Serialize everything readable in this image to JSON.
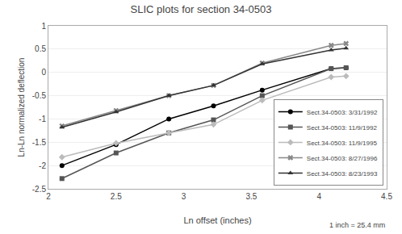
{
  "chart_data": {
    "type": "line",
    "title": "SLIC plots for section 34-0503",
    "x_label": "Ln offset (inches)",
    "y_label": "Ln-Ln normalized deflection",
    "annotations": [
      "1 inch = 25.4 mm"
    ],
    "xlim": [
      2.0,
      4.5
    ],
    "ylim": [
      -2.5,
      1.0
    ],
    "xticks": [
      2.0,
      2.5,
      3.0,
      3.5,
      4.0,
      4.5
    ],
    "yticks": [
      -2.5,
      -2.0,
      -1.5,
      -1.0,
      -0.5,
      0.0,
      0.5,
      1.0
    ],
    "grid": true,
    "legend": "lower right",
    "series": [
      {
        "name": "Sect.34-0503: 3/31/1992",
        "color": "#000000",
        "marker": "circle",
        "line_style": "solid",
        "x": [
          2.1,
          2.5,
          2.89,
          3.22,
          3.58,
          4.09,
          4.2
        ],
        "values": [
          -2.0,
          -1.55,
          -1.0,
          -0.72,
          -0.38,
          0.08,
          0.1
        ]
      },
      {
        "name": "Sect.34-0503: 11/9/1992",
        "color": "#555555",
        "marker": "square",
        "line_style": "solid",
        "x": [
          2.1,
          2.5,
          2.89,
          3.22,
          3.58,
          4.09,
          4.2
        ],
        "values": [
          -2.28,
          -1.73,
          -1.3,
          -1.02,
          -0.5,
          0.08,
          0.1
        ]
      },
      {
        "name": "Sect.34-0503: 11/9/1995",
        "color": "#bbbbbb",
        "marker": "diamond",
        "line_style": "solid",
        "x": [
          2.1,
          2.5,
          2.89,
          3.22,
          3.58,
          4.09,
          4.2
        ],
        "values": [
          -1.82,
          -1.52,
          -1.3,
          -1.12,
          -0.6,
          -0.1,
          -0.08
        ]
      },
      {
        "name": "Sect.34-0503: 8/27/1996",
        "color": "#888888",
        "marker": "x",
        "line_style": "solid",
        "x": [
          2.1,
          2.5,
          2.89,
          3.22,
          3.58,
          4.09,
          4.2
        ],
        "values": [
          -1.15,
          -0.82,
          -0.5,
          -0.28,
          0.2,
          0.58,
          0.62
        ]
      },
      {
        "name": "Sect.34-0503: 8/23/1993",
        "color": "#333333",
        "marker": "triangle-up",
        "line_style": "solid",
        "x": [
          2.1,
          2.5,
          2.89,
          3.22,
          3.58,
          4.09,
          4.2
        ],
        "values": [
          -1.18,
          -0.85,
          -0.5,
          -0.28,
          0.18,
          0.48,
          0.52
        ]
      }
    ]
  }
}
